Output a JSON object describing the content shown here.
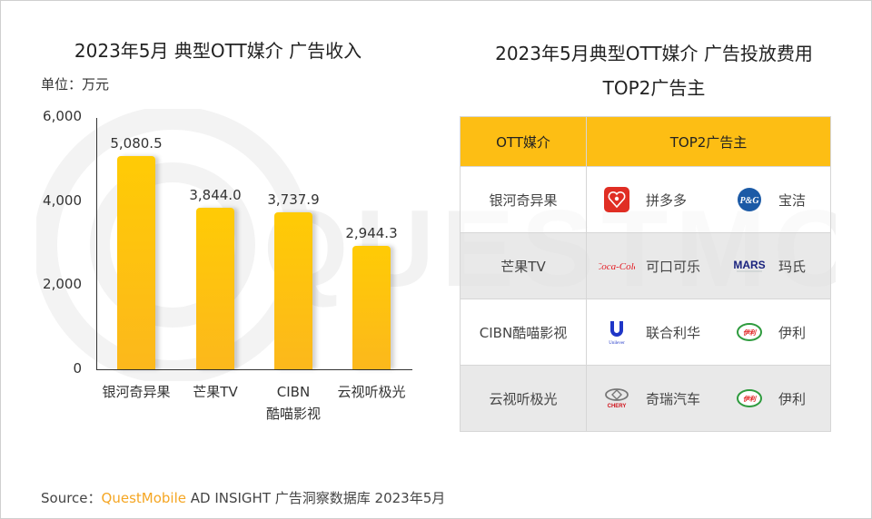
{
  "left_panel": {
    "title": "2023年5月 典型OTT媒介 广告收入",
    "unit": "单位：万元"
  },
  "right_panel": {
    "title_line1": "2023年5月典型OTT媒介 广告投放费用",
    "title_line2": "TOP2广告主",
    "table": {
      "headers": [
        "OTT媒介",
        "TOP2广告主"
      ],
      "rows": [
        {
          "media": "银河奇异果",
          "advertisers": [
            {
              "name": "拼多多",
              "logo": "pinduoduo-logo"
            },
            {
              "name": "宝洁",
              "logo": "pg-logo",
              "logo_text": "P&G"
            }
          ]
        },
        {
          "media": "芒果TV",
          "advertisers": [
            {
              "name": "可口可乐",
              "logo": "coca-cola-logo",
              "logo_text": "Coca-Cola"
            },
            {
              "name": "玛氏",
              "logo": "mars-logo",
              "logo_text": "MARS"
            }
          ]
        },
        {
          "media": "CIBN酷喵影视",
          "advertisers": [
            {
              "name": "联合利华",
              "logo": "unilever-logo",
              "logo_text": "Unilever"
            },
            {
              "name": "伊利",
              "logo": "yili-logo",
              "logo_text": "伊利"
            }
          ]
        },
        {
          "media": "云视听极光",
          "advertisers": [
            {
              "name": "奇瑞汽车",
              "logo": "chery-logo",
              "logo_text": "CHERY"
            },
            {
              "name": "伊利",
              "logo": "yili-logo",
              "logo_text": "伊利"
            }
          ]
        }
      ]
    }
  },
  "source": {
    "prefix": "Source：",
    "brand": "QuestMobile",
    "rest": " AD INSIGHT 广告洞察数据库 2023年5月"
  },
  "watermark": "QUESTMOBILE",
  "colors": {
    "bar": "#fcbf10",
    "header": "#fdbe14",
    "source_brand": "#f5a623"
  },
  "chart_data": {
    "type": "bar",
    "title": "2023年5月 典型OTT媒介 广告收入",
    "xlabel": "",
    "ylabel": "单位：万元",
    "categories": [
      "银河奇异果",
      "芒果TV",
      "CIBN酷喵影视",
      "云视听极光"
    ],
    "category_labels": [
      [
        "银河奇异果"
      ],
      [
        "芒果TV"
      ],
      [
        "CIBN",
        "酷喵影视"
      ],
      [
        "云视听极光"
      ]
    ],
    "values": [
      5080.5,
      3844.0,
      3737.9,
      2944.3
    ],
    "value_labels": [
      "5,080.5",
      "3,844.0",
      "3,737.9",
      "2,944.3"
    ],
    "yticks": [
      "0",
      "2,000",
      "4,000",
      "6,000"
    ],
    "ylim": [
      0,
      6000
    ],
    "grid": false,
    "legend": null
  }
}
